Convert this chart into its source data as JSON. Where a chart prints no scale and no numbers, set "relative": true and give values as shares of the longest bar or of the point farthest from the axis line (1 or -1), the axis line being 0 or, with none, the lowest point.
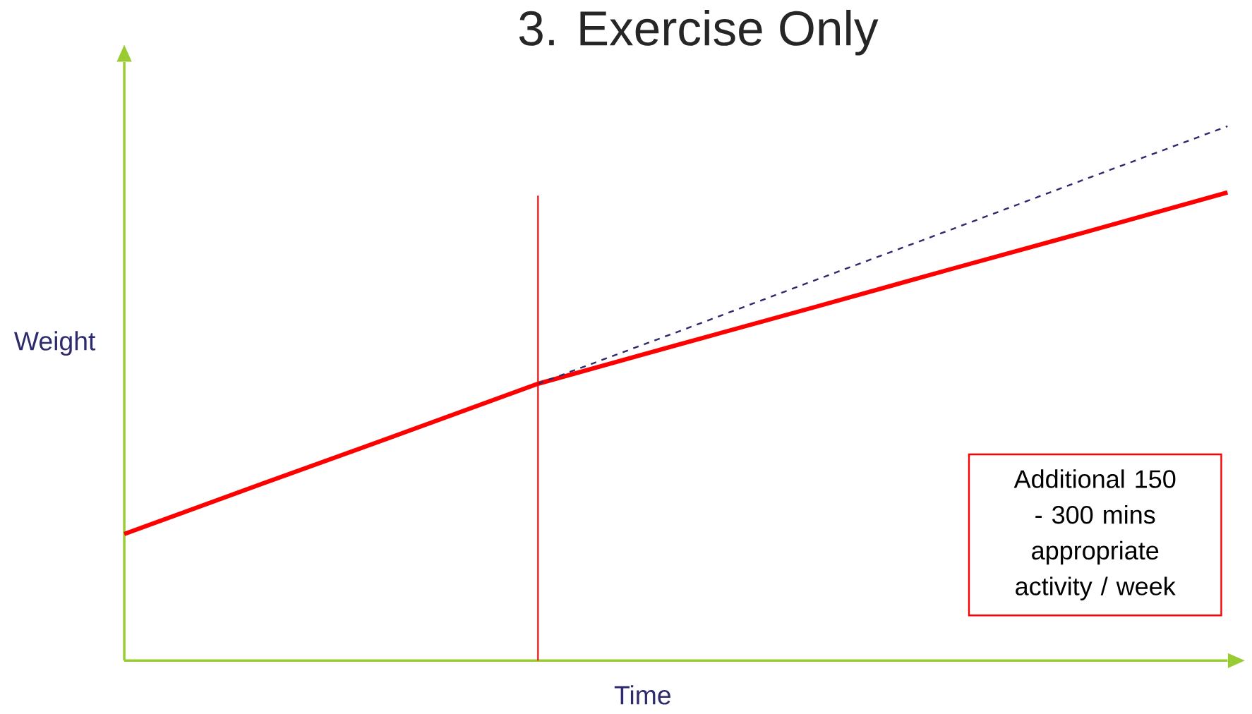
{
  "chart_data": {
    "type": "line",
    "title": "3. Exercise Only",
    "xlabel": "Time",
    "ylabel": "Weight",
    "relative": true,
    "categories": [
      null,
      null,
      null,
      null,
      null,
      null,
      null,
      null,
      null
    ],
    "series": [
      {
        "color": "#ff0000",
        "values": [
          0.237,
          0.331,
          0.424,
          0.518,
          0.59,
          0.661,
          0.733,
          0.804,
          0.876
        ],
        "line_style": "solid"
      },
      {
        "color": "#2e2a6e",
        "values": [
          null,
          null,
          null,
          0.518,
          0.614,
          0.711,
          0.807,
          0.904,
          1.0
        ],
        "line_style": "dashed"
      }
    ],
    "annotations": [
      "Additional 150 - 300 mins appropriate activity / week"
    ]
  }
}
